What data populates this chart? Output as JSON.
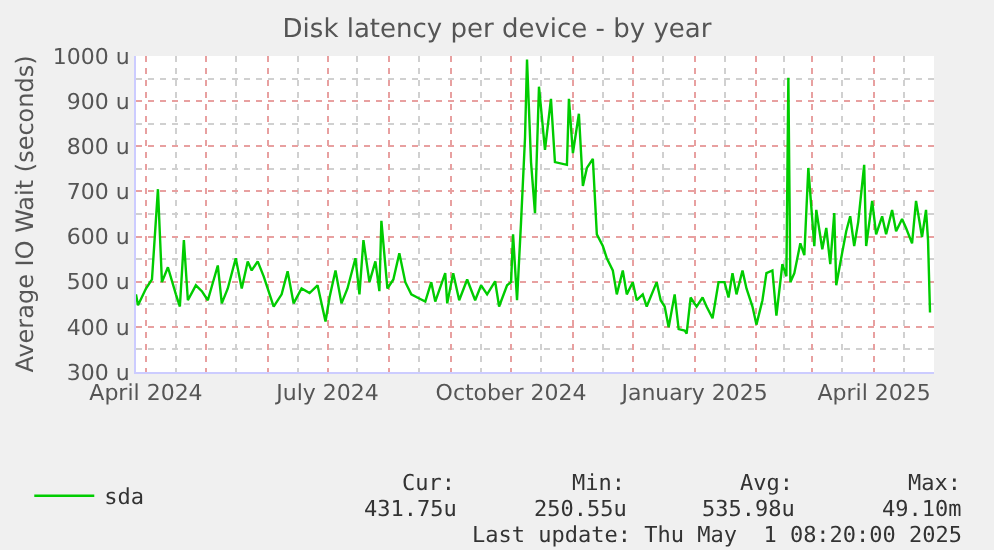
{
  "chart_data": {
    "type": "line",
    "title": "Disk latency per device - by year",
    "ylabel": "Average IO Wait (seconds)",
    "xlim": [
      "2024-03-27",
      "2025-05-01"
    ],
    "xticks": [
      {
        "value": "2024-04-01",
        "label": "April 2024"
      },
      {
        "value": "2024-05-01",
        "label": null
      },
      {
        "value": "2024-06-01",
        "label": null
      },
      {
        "value": "2024-07-01",
        "label": "July 2024"
      },
      {
        "value": "2024-08-01",
        "label": null
      },
      {
        "value": "2024-09-01",
        "label": null
      },
      {
        "value": "2024-10-01",
        "label": "October 2024"
      },
      {
        "value": "2024-11-01",
        "label": null
      },
      {
        "value": "2024-12-01",
        "label": null
      },
      {
        "value": "2025-01-01",
        "label": "January 2025"
      },
      {
        "value": "2025-02-01",
        "label": null
      },
      {
        "value": "2025-03-01",
        "label": null
      },
      {
        "value": "2025-04-01",
        "label": "April 2025"
      },
      {
        "value": "2025-05-01",
        "label": null
      }
    ],
    "ylim": [
      300,
      1000
    ],
    "yticks": [
      {
        "value": 300,
        "label": "300 u"
      },
      {
        "value": 400,
        "label": "400 u"
      },
      {
        "value": 500,
        "label": "500 u"
      },
      {
        "value": 600,
        "label": "600 u"
      },
      {
        "value": 700,
        "label": "700 u"
      },
      {
        "value": 800,
        "label": "800 u"
      },
      {
        "value": 900,
        "label": "900 u"
      },
      {
        "value": 1000,
        "label": "1000 u"
      }
    ],
    "grid": true,
    "legend": "bottom left",
    "marker": "none",
    "line_style": "solid",
    "series": [
      {
        "name": "sda",
        "color": "#00cc00",
        "x": [
          "2024-03-27",
          "2024-03-28",
          "2024-04-01",
          "2024-04-04",
          "2024-04-07",
          "2024-04-09",
          "2024-04-12",
          "2024-04-16",
          "2024-04-18",
          "2024-04-20",
          "2024-04-22",
          "2024-04-26",
          "2024-04-29",
          "2024-05-02",
          "2024-05-07",
          "2024-05-09",
          "2024-05-12",
          "2024-05-16",
          "2024-05-19",
          "2024-05-22",
          "2024-05-24",
          "2024-05-27",
          "2024-05-30",
          "2024-06-01",
          "2024-06-04",
          "2024-06-08",
          "2024-06-11",
          "2024-06-14",
          "2024-06-18",
          "2024-06-22",
          "2024-06-26",
          "2024-06-30",
          "2024-07-02",
          "2024-07-05",
          "2024-07-08",
          "2024-07-11",
          "2024-07-15",
          "2024-07-17",
          "2024-07-19",
          "2024-07-22",
          "2024-07-25",
          "2024-07-27",
          "2024-07-28",
          "2024-07-31",
          "2024-08-03",
          "2024-08-06",
          "2024-08-09",
          "2024-08-12",
          "2024-08-15",
          "2024-08-19",
          "2024-08-22",
          "2024-08-24",
          "2024-08-29",
          "2024-08-30",
          "2024-09-02",
          "2024-09-05",
          "2024-09-09",
          "2024-09-13",
          "2024-09-16",
          "2024-09-19",
          "2024-09-23",
          "2024-09-25",
          "2024-09-29",
          "2024-10-01",
          "2024-10-02",
          "2024-10-04",
          "2024-10-06",
          "2024-10-08",
          "2024-10-09",
          "2024-10-11",
          "2024-10-13",
          "2024-10-15",
          "2024-10-18",
          "2024-10-21",
          "2024-10-23",
          "2024-10-29",
          "2024-10-30",
          "2024-11-01",
          "2024-11-04",
          "2024-11-06",
          "2024-11-08",
          "2024-11-11",
          "2024-11-13",
          "2024-11-16",
          "2024-11-18",
          "2024-11-21",
          "2024-11-23",
          "2024-11-26",
          "2024-11-28",
          "2024-12-01",
          "2024-12-03",
          "2024-12-06",
          "2024-12-08",
          "2024-12-13",
          "2024-12-15",
          "2024-12-17",
          "2024-12-19",
          "2024-12-22",
          "2024-12-24",
          "2024-12-27",
          "2024-12-28",
          "2024-12-30",
          "2025-01-02",
          "2025-01-05",
          "2025-01-07",
          "2025-01-10",
          "2025-01-13",
          "2025-01-16",
          "2025-01-18",
          "2025-01-20",
          "2025-01-22",
          "2025-01-25",
          "2025-01-27",
          "2025-01-30",
          "2025-02-01",
          "2025-02-04",
          "2025-02-06",
          "2025-02-09",
          "2025-02-11",
          "2025-02-14",
          "2025-02-16",
          "2025-02-17",
          "2025-02-18",
          "2025-02-20",
          "2025-02-23",
          "2025-02-25",
          "2025-02-27",
          "2025-03-02",
          "2025-03-03",
          "2025-03-06",
          "2025-03-08",
          "2025-03-10",
          "2025-03-12",
          "2025-03-13",
          "2025-03-16",
          "2025-03-18",
          "2025-03-20",
          "2025-03-22",
          "2025-03-24",
          "2025-03-27",
          "2025-03-28",
          "2025-03-31",
          "2025-04-02",
          "2025-04-05",
          "2025-04-07",
          "2025-04-10",
          "2025-04-12",
          "2025-04-15",
          "2025-04-17",
          "2025-04-20",
          "2025-04-22",
          "2025-04-25",
          "2025-04-27",
          "2025-04-28",
          "2025-04-29"
        ],
        "values": [
          472,
          448,
          485,
          505,
          705,
          499,
          532,
          472,
          445,
          592,
          459,
          492,
          479,
          459,
          536,
          452,
          485,
          552,
          485,
          545,
          525,
          545,
          512,
          485,
          445,
          472,
          523,
          452,
          485,
          475,
          492,
          412,
          465,
          525,
          452,
          485,
          552,
          472,
          592,
          499,
          545,
          479,
          635,
          485,
          505,
          563,
          499,
          472,
          465,
          456,
          499,
          456,
          519,
          452,
          519,
          459,
          505,
          459,
          492,
          472,
          501,
          445,
          492,
          499,
          605,
          459,
          632,
          819,
          992,
          765,
          652,
          932,
          792,
          905,
          765,
          759,
          905,
          785,
          872,
          712,
          752,
          772,
          605,
          579,
          552,
          525,
          472,
          525,
          472,
          499,
          459,
          472,
          445,
          499,
          459,
          445,
          399,
          472,
          395,
          392,
          385,
          465,
          445,
          465,
          445,
          419,
          499,
          499,
          465,
          519,
          472,
          525,
          485,
          445,
          405,
          459,
          519,
          525,
          425,
          539,
          512,
          952,
          499,
          519,
          585,
          559,
          752,
          579,
          659,
          572,
          619,
          539,
          652,
          492,
          565,
          612,
          645,
          579,
          632,
          759,
          579,
          679,
          605,
          645,
          605,
          659,
          612,
          639,
          619,
          585,
          679,
          599,
          659,
          592,
          432
        ]
      }
    ],
    "annotations": [
      "Cur:",
      "431.75u",
      "Min:",
      "250.55u",
      "Avg:",
      "535.98u",
      "Max:",
      "49.10m",
      "Last update: Thu May  1 08:20:00 2025"
    ]
  }
}
